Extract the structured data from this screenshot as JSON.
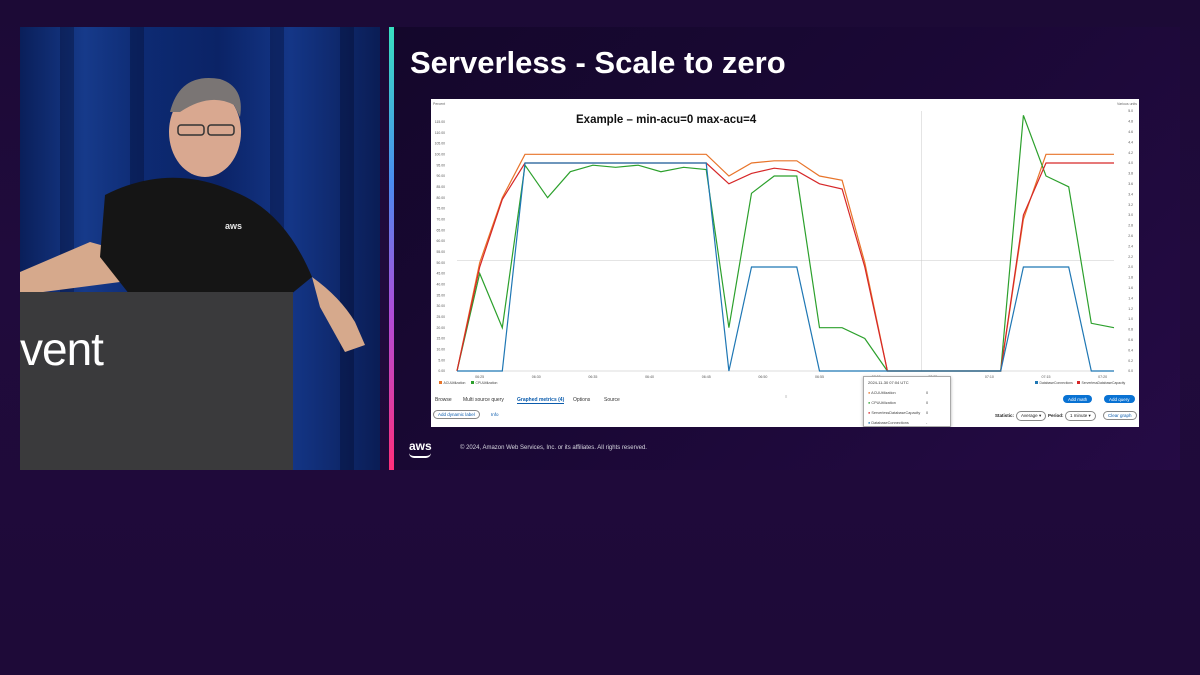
{
  "stage": {
    "podium_text": "vent"
  },
  "slide": {
    "title": "Serverless - Scale to zero",
    "footer_logo": "aws",
    "copyright": "© 2024, Amazon Web Services, Inc. or its affiliates. All rights reserved."
  },
  "console": {
    "annotation": "Example – min-acu=0 max-acu=4",
    "left_axis_unit": "Percent",
    "right_axis_unit": "Various units",
    "tabs": [
      "Browse",
      "Multi source query",
      "Graphed metrics (4)",
      "Options",
      "Source"
    ],
    "active_tab": "Graphed metrics (4)",
    "add_dynamic_label": "Add dynamic label",
    "info_link": "Info",
    "add_math": "Add math",
    "add_query": "Add query",
    "statistic_label": "Statistic:",
    "statistic_value": "Average",
    "period_label": "Period:",
    "period_value": "1 minute",
    "clear_graph": "Clear graph",
    "hover_time": "2024-11-30 07:04 UTC",
    "popup_rows": [
      {
        "id": "1",
        "label": "ACUUtilization",
        "value": "0",
        "color": "#e8742a"
      },
      {
        "id": "2",
        "label": "CPUUtilization",
        "value": "0",
        "color": "#2ca02c"
      },
      {
        "id": "3",
        "label": "ServerlessDatabaseCapacity",
        "value": "0",
        "color": "#d62728"
      },
      {
        "id": "4",
        "label": "DatabaseConnections",
        "value": "-",
        "color": "#1f77b4"
      }
    ],
    "legend_left": [
      "ACUUtilization",
      "CPUUtilization"
    ],
    "legend_right": [
      "DatabaseConnections",
      "ServerlessDatabaseCapacity"
    ]
  },
  "chart_data": {
    "type": "line",
    "x": [
      "06:23",
      "06:25",
      "06:27",
      "06:29",
      "06:31",
      "06:33",
      "06:35",
      "06:37",
      "06:39",
      "06:41",
      "06:43",
      "06:45",
      "06:47",
      "06:49",
      "06:51",
      "06:53",
      "06:55",
      "06:57",
      "06:59",
      "07:01",
      "07:03",
      "07:05",
      "07:07",
      "07:09",
      "07:11",
      "07:13",
      "07:15",
      "07:17",
      "07:19",
      "07:21"
    ],
    "x_ticks": [
      "06:25",
      "06:30",
      "06:35",
      "06:40",
      "06:45",
      "06:50",
      "06:55",
      "07:00",
      "07:05",
      "07:10",
      "07:15",
      "07:20"
    ],
    "ylim_left": [
      0,
      120
    ],
    "y_ticks_left": [
      0,
      5,
      10,
      15,
      20,
      25,
      30,
      35,
      40,
      45,
      50,
      55,
      60,
      65,
      70,
      75,
      80,
      85,
      90,
      95,
      100,
      105,
      110,
      115
    ],
    "ylim_right": [
      0,
      5
    ],
    "y_ticks_right": [
      0,
      0.2,
      0.4,
      0.6,
      0.8,
      1,
      1.2,
      1.4,
      1.6,
      1.8,
      2,
      2.2,
      2.4,
      2.6,
      2.8,
      3,
      3.2,
      3.4,
      3.6,
      3.8,
      4,
      4.2,
      4.4,
      4.6,
      4.8,
      5
    ],
    "threshold": 51.1,
    "series": [
      {
        "name": "ACUUtilization",
        "axis": "left",
        "color": "#e8742a",
        "values": [
          0,
          50,
          80,
          100,
          100,
          100,
          100,
          100,
          100,
          100,
          100,
          100,
          90,
          96,
          97,
          97,
          90,
          88,
          50,
          0,
          0,
          0,
          0,
          0,
          0,
          70,
          100,
          100,
          100,
          100
        ]
      },
      {
        "name": "CPUUtilization",
        "axis": "left",
        "color": "#2ca02c",
        "values": [
          0,
          45,
          20,
          95,
          80,
          92,
          95,
          94,
          95,
          92,
          94,
          93,
          20,
          82,
          90,
          90,
          20,
          20,
          15,
          0,
          0,
          0,
          0,
          0,
          0,
          118,
          90,
          85,
          22,
          20
        ]
      },
      {
        "name": "ServerlessDatabaseCapacity",
        "axis": "right",
        "color": "#d62728",
        "values": [
          0,
          2.0,
          3.3,
          4.0,
          4.0,
          4.0,
          4.0,
          4.0,
          4.0,
          4.0,
          4.0,
          4.0,
          3.6,
          3.8,
          3.9,
          3.85,
          3.6,
          3.5,
          2.0,
          0,
          0,
          0,
          0,
          0,
          0,
          3.0,
          4.0,
          4.0,
          4.0,
          4.0
        ]
      },
      {
        "name": "DatabaseConnections",
        "axis": "right",
        "color": "#1f77b4",
        "values": [
          0,
          0,
          0,
          4.0,
          4.0,
          4.0,
          4.0,
          4.0,
          4.0,
          4.0,
          4.0,
          4.0,
          0,
          2.0,
          2.0,
          2.0,
          0,
          0,
          0,
          0,
          0,
          0,
          0,
          0,
          0,
          2.0,
          2.0,
          2.0,
          0,
          0
        ]
      }
    ]
  }
}
